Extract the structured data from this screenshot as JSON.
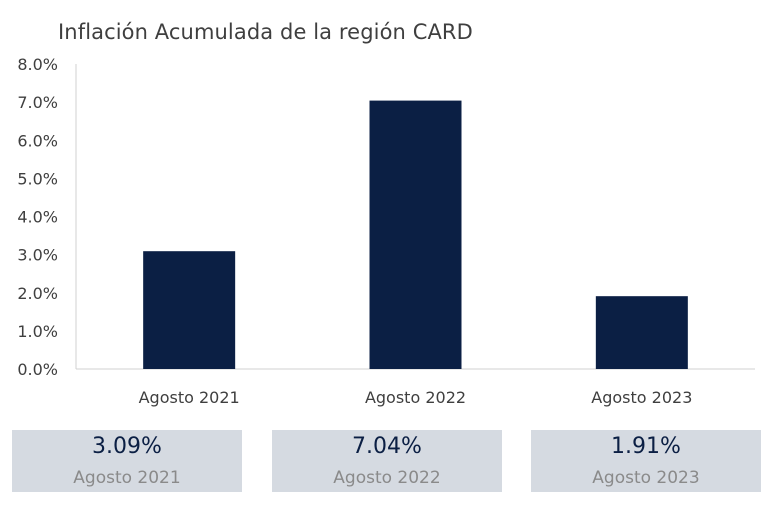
{
  "chart_data": {
    "type": "bar",
    "title": "Inflación Acumulada de la región CARD",
    "categories": [
      "Agosto 2021",
      "Agosto 2022",
      "Agosto 2023"
    ],
    "values": [
      3.09,
      7.04,
      1.91
    ],
    "ylim": [
      0,
      8
    ],
    "yticks": [
      "0.0%",
      "1.0%",
      "2.0%",
      "3.0%",
      "4.0%",
      "5.0%",
      "6.0%",
      "7.0%",
      "8.0%"
    ],
    "grid": false,
    "bar_color": "#0b1f44"
  },
  "cards": [
    {
      "value": "3.09%",
      "label": "Agosto 2021"
    },
    {
      "value": "7.04%",
      "label": "Agosto 2022"
    },
    {
      "value": "1.91%",
      "label": "Agosto 2023"
    }
  ]
}
